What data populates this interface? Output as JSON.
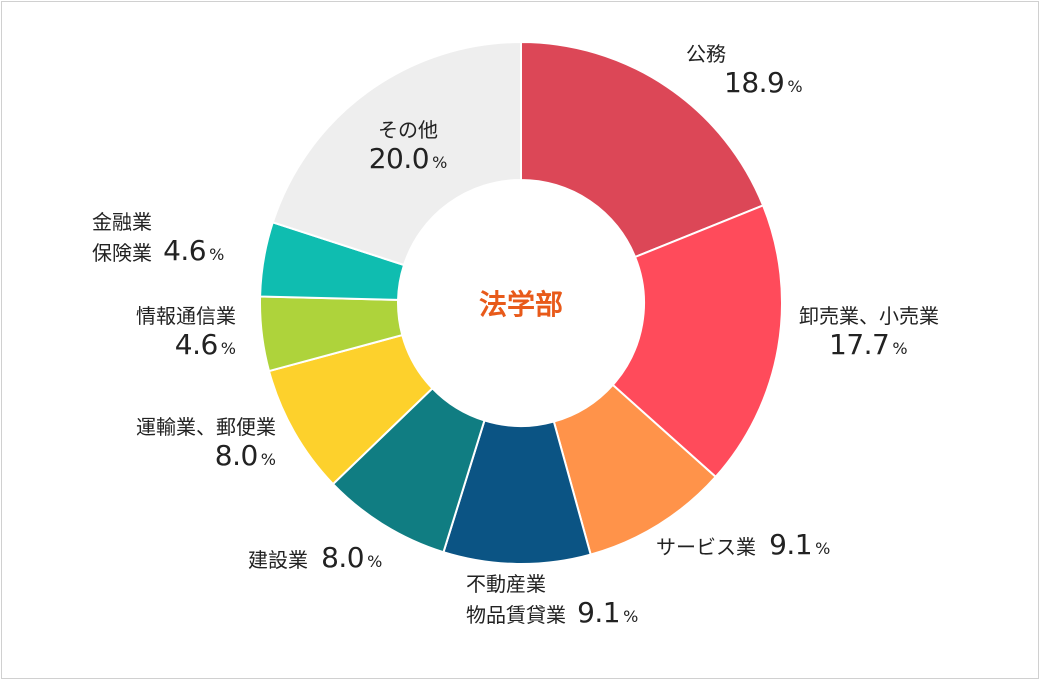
{
  "chart_data": {
    "type": "pie",
    "donut": true,
    "center_label": "法学部",
    "unit": "%",
    "slices": [
      {
        "label_lines": [
          "公務"
        ],
        "value": 18.9,
        "value_text": "18.9",
        "color": "#dc4757"
      },
      {
        "label_lines": [
          "卸売業、小売業"
        ],
        "value": 17.7,
        "value_text": "17.7",
        "color": "#ff4b5b"
      },
      {
        "label_lines": [
          "サービス業"
        ],
        "value": 9.1,
        "value_text": "9.1",
        "color": "#ff934a"
      },
      {
        "label_lines": [
          "不動産業",
          "物品賃貸業"
        ],
        "value": 9.1,
        "value_text": "9.1",
        "color": "#0b5484"
      },
      {
        "label_lines": [
          "建設業"
        ],
        "value": 8.0,
        "value_text": "8.0",
        "color": "#107d82"
      },
      {
        "label_lines": [
          "運輸業、郵便業"
        ],
        "value": 8.0,
        "value_text": "8.0",
        "color": "#fdd12c"
      },
      {
        "label_lines": [
          "情報通信業"
        ],
        "value": 4.6,
        "value_text": "4.6",
        "color": "#aed33b"
      },
      {
        "label_lines": [
          "金融業",
          "保険業"
        ],
        "value": 4.6,
        "value_text": "4.6",
        "color": "#0fbdb0"
      },
      {
        "label_lines": [
          "その他"
        ],
        "value": 20.0,
        "value_text": "20.0",
        "color": "#eeeeee"
      }
    ]
  }
}
